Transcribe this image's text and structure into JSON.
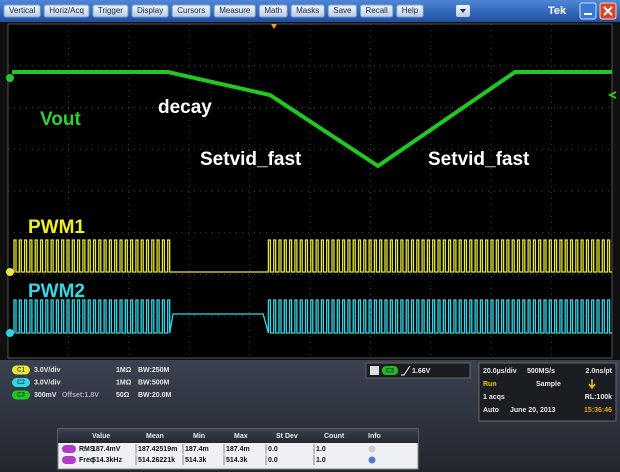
{
  "menu": [
    "Vertical",
    "Horiz/Acq",
    "Trigger",
    "Display",
    "Cursors",
    "Measure",
    "Math",
    "Masks",
    "Save",
    "Recall",
    "Help"
  ],
  "brand": "Tek",
  "annotations": {
    "vout": "Vout",
    "decay": "decay",
    "setvid_left": "Setvid_fast",
    "setvid_right": "Setvid_fast",
    "pwm1": "PWM1",
    "pwm2": "PWM2"
  },
  "channels": [
    {
      "label": "C1",
      "scale": "3.0V/div",
      "impedance": "1MΩ",
      "bandwidth": "BW:250M"
    },
    {
      "label": "C2",
      "scale": "3.0V/div",
      "impedance": "1MΩ",
      "bandwidth": "BW:500M"
    },
    {
      "label": "C3",
      "scale": "300mV",
      "offset": "Offset:1.8V",
      "impedance": "50Ω",
      "bandwidth": "BW:20.0M"
    }
  ],
  "trigger": {
    "source": "C3",
    "level": "1.66V"
  },
  "acquisition": {
    "timebase": "20.0µs/div",
    "sample_rate": "500MS/s",
    "resolution": "2.0ns/pt",
    "state": "Run",
    "mode": "Sample",
    "acqs": "1 acqs",
    "record_length": "RL:100k",
    "trigger_mode": "Auto",
    "date": "June 20, 2013",
    "time": "15:36:46"
  },
  "measurements": {
    "headers": [
      "Value",
      "Mean",
      "Min",
      "Max",
      "St Dev",
      "Count",
      "Info"
    ],
    "rows": [
      [
        "RMS",
        "187.4mV",
        "187.42519m",
        "187.4m",
        "187.4m",
        "0.0",
        "1.0"
      ],
      [
        "Freq",
        "514.3kHz",
        "514.26221k",
        "514.3k",
        "514.3k",
        "0.0",
        "1.0"
      ]
    ]
  }
}
